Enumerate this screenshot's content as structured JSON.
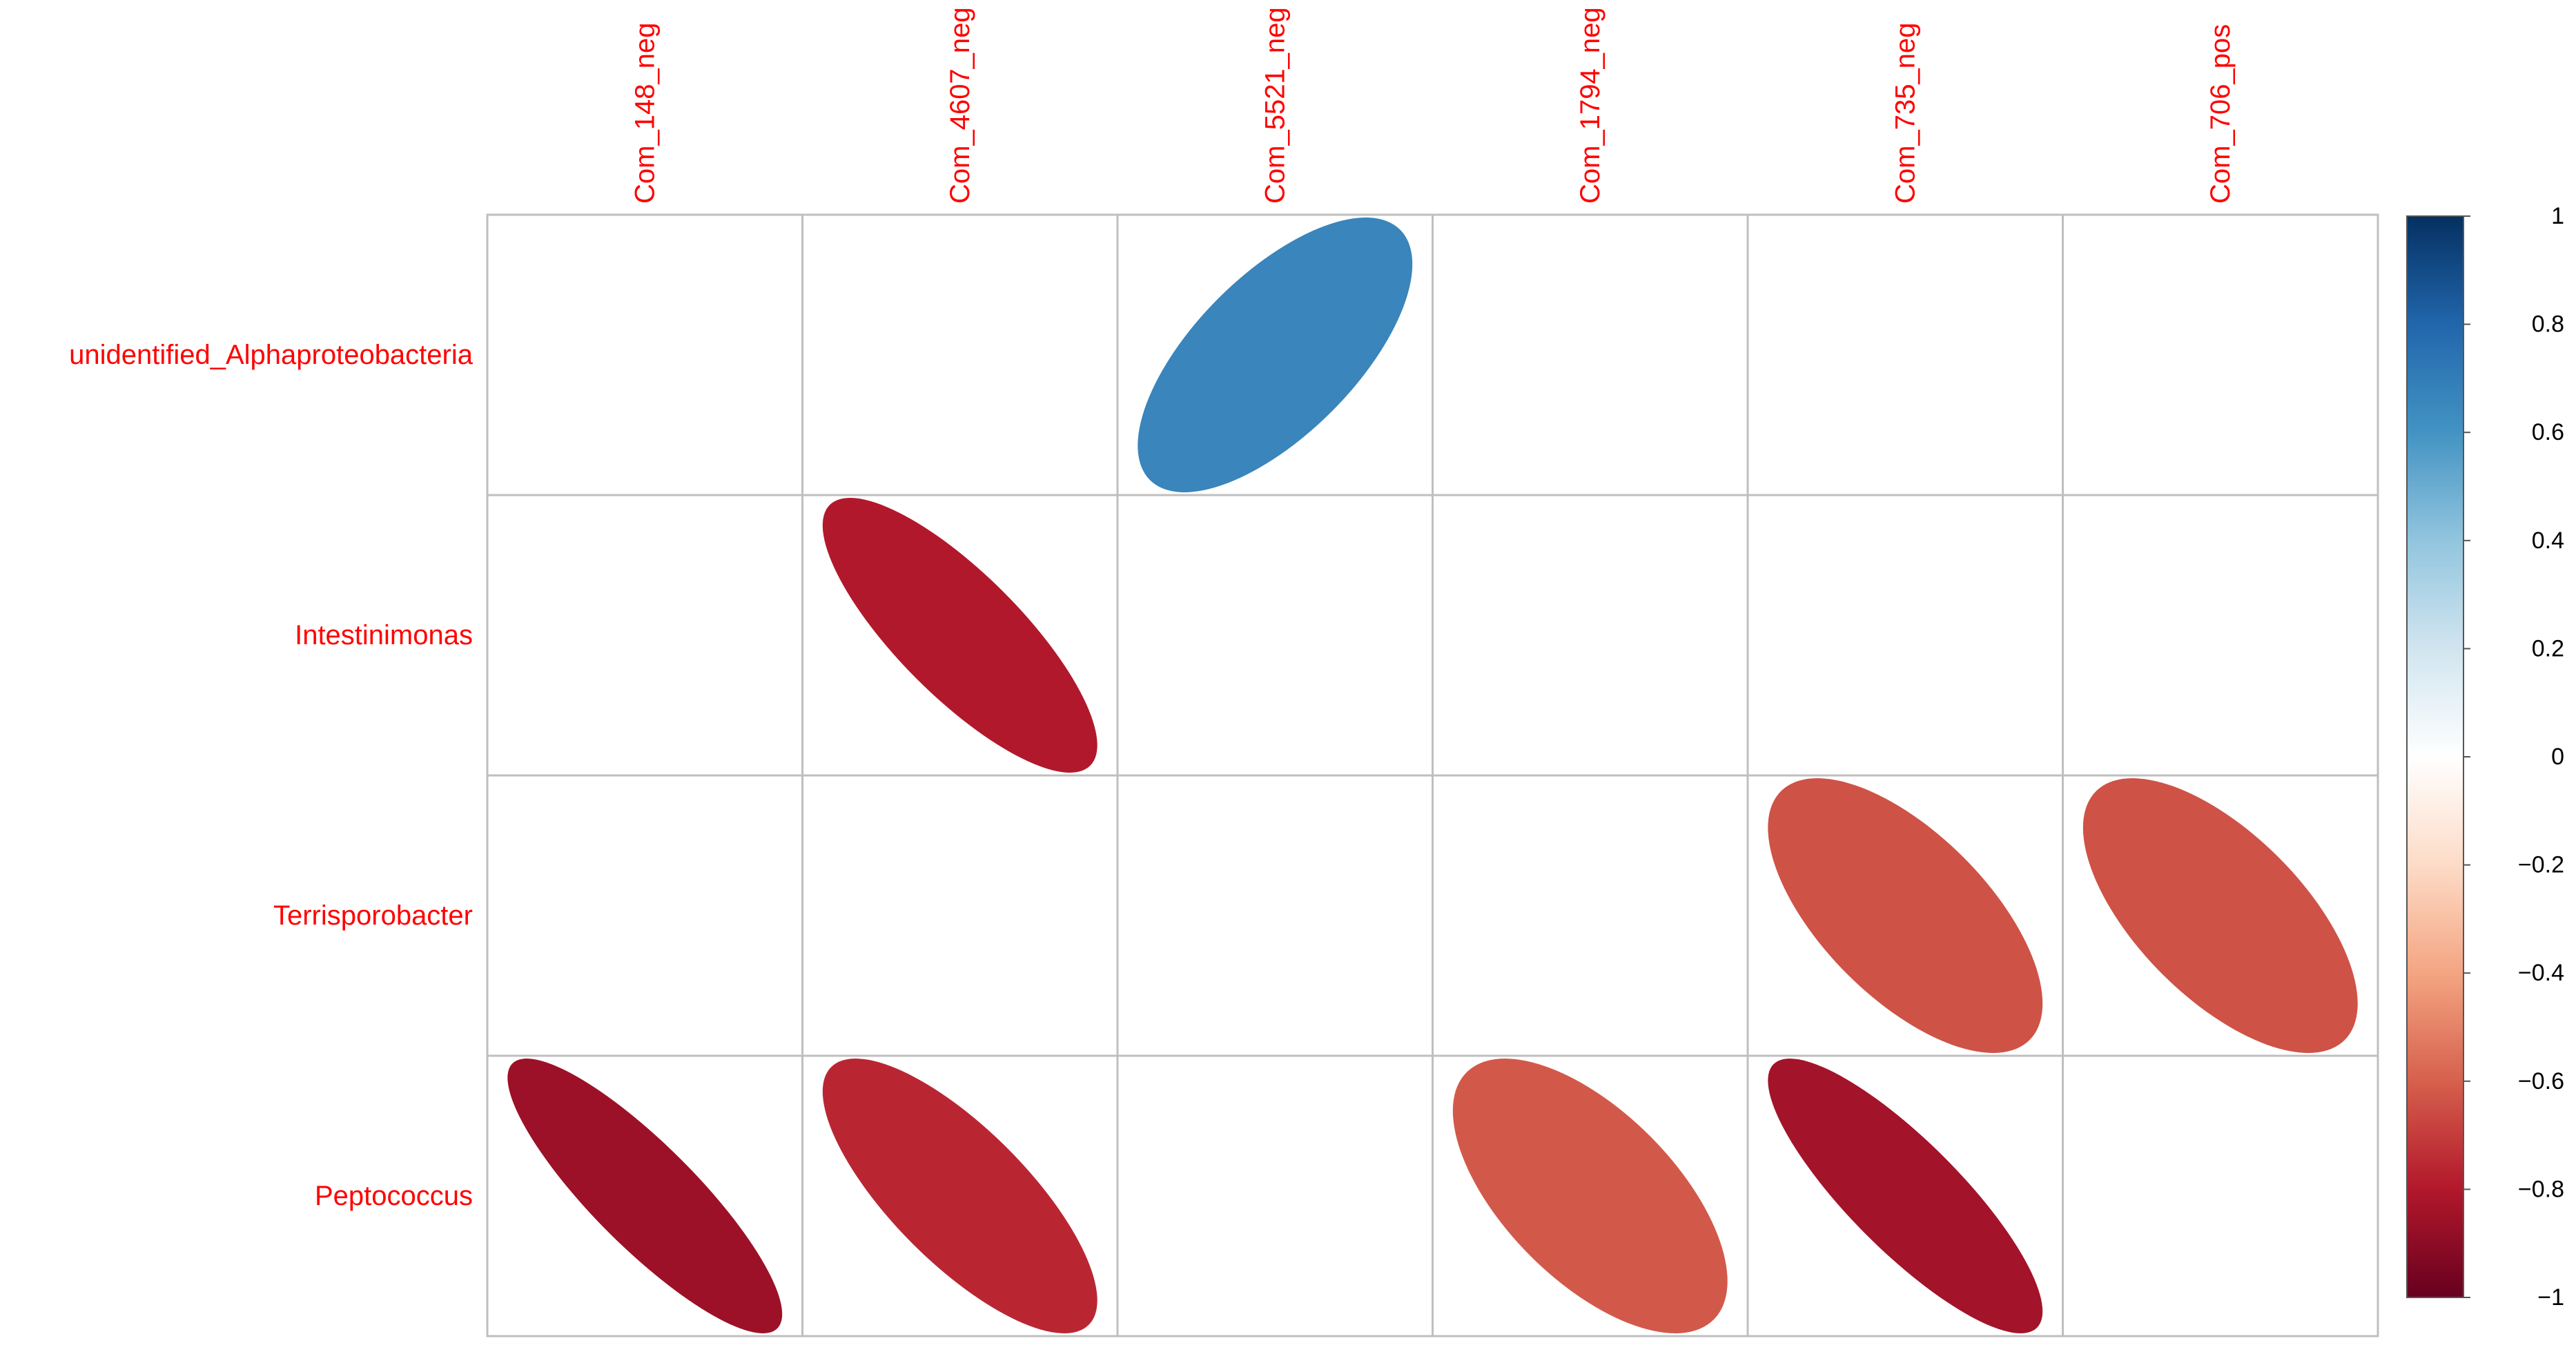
{
  "chart_data": {
    "type": "heatmap",
    "style": "corrplot-ellipse",
    "rows": [
      "unidentified_Alphaproteobacteria",
      "Intestinimonas",
      "Terrisporobacter",
      "Peptococcus"
    ],
    "columns": [
      "Com_148_neg",
      "Com_4607_neg",
      "Com_5521_neg",
      "Com_1794_neg",
      "Com_735_neg",
      "Com_706_pos"
    ],
    "values": [
      [
        null,
        null,
        0.66,
        null,
        null,
        null
      ],
      [
        null,
        -0.8,
        null,
        null,
        null,
        null
      ],
      [
        null,
        null,
        null,
        null,
        -0.64,
        -0.64
      ],
      [
        -0.86,
        -0.76,
        null,
        -0.62,
        -0.84,
        null
      ]
    ],
    "colorbar": {
      "range": [
        -1,
        1
      ],
      "ticks": [
        "1",
        "0.8",
        "0.6",
        "0.4",
        "0.2",
        "0",
        "−0.2",
        "−0.4",
        "−0.6",
        "−0.8",
        "−1"
      ]
    },
    "label_color": "#ff0000",
    "grid": true,
    "colors": {
      "grid": "#bfbfbf",
      "scale": [
        "#67001f",
        "#b2182b",
        "#d6604d",
        "#f4a582",
        "#fddbc7",
        "#ffffff",
        "#d1e5f0",
        "#92c5de",
        "#4393c3",
        "#2166ac",
        "#053061"
      ]
    }
  }
}
